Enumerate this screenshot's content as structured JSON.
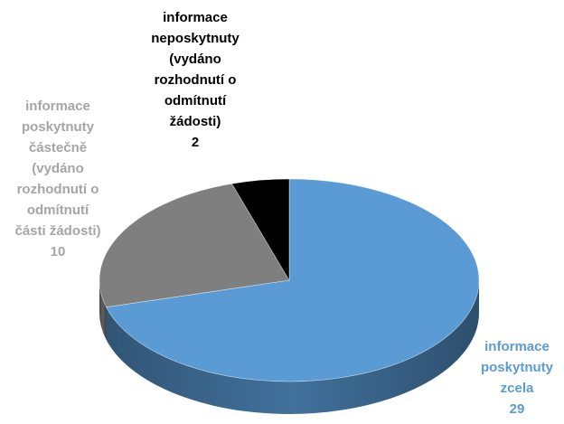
{
  "chart_data": {
    "type": "pie",
    "style": "3d",
    "start_angle_deg": 90,
    "direction": "clockwise",
    "categories": [
      "informace poskytnuty zcela",
      "informace poskytnuty částečně (vydáno rozhodnutí o odmítnutí části žádosti)",
      "informace neposkytnuty (vydáno rozhodnutí o odmítnutí žádosti)"
    ],
    "values": [
      29,
      10,
      2
    ],
    "labels": [
      {
        "lines": [
          "informace",
          "poskytnuty",
          "zcela"
        ],
        "value": "29"
      },
      {
        "lines": [
          "informace",
          "poskytnuty",
          "částečně",
          "(vydáno",
          "rozhodnutí o",
          "odmítnutí",
          "části žádosti)"
        ],
        "value": "10"
      },
      {
        "lines": [
          "informace",
          "neposkytnuty",
          "(vydáno",
          "rozhodnutí o",
          "odmítnutí",
          "žádosti)"
        ],
        "value": "2"
      }
    ],
    "colors": {
      "slice_top": [
        "#5b9bd5",
        "#7f7f7f",
        "#000000"
      ],
      "slice_side": [
        "#41719c",
        "#5f5f5f",
        "#000000"
      ],
      "label_text": [
        "#5b9bd5",
        "#a5a5a5",
        "#000000"
      ]
    },
    "legend": "none"
  }
}
